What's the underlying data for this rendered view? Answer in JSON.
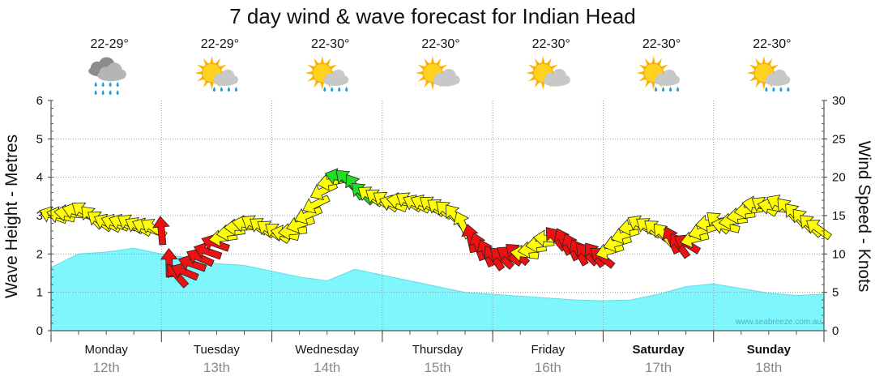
{
  "chart_data": {
    "type": "area",
    "title": "7 day wind & wave forecast for Indian Head",
    "ylabel_left": "Wave Height - Metres",
    "ylabel_right": "Wind Speed - Knots",
    "ylim_left": [
      0,
      6
    ],
    "ylim_right": [
      0,
      30
    ],
    "yticks_left": [
      "0",
      "1",
      "2",
      "3",
      "4",
      "5",
      "6"
    ],
    "yticks_right": [
      "0",
      "5",
      "10",
      "15",
      "20",
      "25",
      "30"
    ],
    "credit": "www.seabreeze.com.au",
    "grid": true,
    "days": [
      {
        "day": "Monday",
        "date": "12th",
        "temp": "22-29°",
        "weather": "rain-cloud-icon",
        "bold": false
      },
      {
        "day": "Tuesday",
        "date": "13th",
        "temp": "22-29°",
        "weather": "sun-shower-icon",
        "bold": false
      },
      {
        "day": "Wednesday",
        "date": "14th",
        "temp": "22-30°",
        "weather": "sun-shower-icon",
        "bold": false
      },
      {
        "day": "Thursday",
        "date": "15th",
        "temp": "22-30°",
        "weather": "partly-cloudy-icon",
        "bold": false
      },
      {
        "day": "Friday",
        "date": "16th",
        "temp": "22-30°",
        "weather": "partly-cloudy-icon",
        "bold": false
      },
      {
        "day": "Saturday",
        "date": "17th",
        "temp": "22-30°",
        "weather": "sun-shower-icon",
        "bold": true
      },
      {
        "day": "Sunday",
        "date": "18th",
        "temp": "22-30°",
        "weather": "sun-shower-icon",
        "bold": true
      }
    ],
    "wave_series": {
      "name": "Wave height",
      "x": [
        0,
        0.25,
        0.5,
        0.75,
        1,
        1.25,
        1.5,
        1.75,
        2,
        2.25,
        2.5,
        2.75,
        3,
        3.25,
        3.5,
        3.75,
        4,
        4.25,
        4.5,
        4.75,
        5,
        5.25,
        5.5,
        5.75,
        6,
        6.25,
        6.5,
        6.75,
        7
      ],
      "values": [
        1.65,
        2.0,
        2.05,
        2.15,
        2.0,
        1.9,
        1.75,
        1.7,
        1.55,
        1.4,
        1.3,
        1.6,
        1.45,
        1.3,
        1.15,
        1.0,
        0.95,
        0.9,
        0.85,
        0.8,
        0.78,
        0.8,
        0.95,
        1.15,
        1.22,
        1.1,
        0.98,
        0.92,
        0.95
      ]
    },
    "wind_series": {
      "name": "Wind speed",
      "x": [
        0,
        0.1,
        0.2,
        0.3,
        0.4,
        0.5,
        0.6,
        0.7,
        0.8,
        0.9,
        1.0,
        1.1,
        1.2,
        1.3,
        1.4,
        1.5,
        1.6,
        1.7,
        1.8,
        1.9,
        2.0,
        2.1,
        2.2,
        2.3,
        2.4,
        2.5,
        2.6,
        2.7,
        2.8,
        2.9,
        3.0,
        3.1,
        3.2,
        3.3,
        3.4,
        3.5,
        3.6,
        3.7,
        3.8,
        3.9,
        4.0,
        4.1,
        4.2,
        4.3,
        4.4,
        4.5,
        4.6,
        4.7,
        4.8,
        4.9,
        5.0,
        5.1,
        5.2,
        5.3,
        5.4,
        5.5,
        5.6,
        5.7,
        5.8,
        5.9,
        6.0,
        6.1,
        6.2,
        6.3,
        6.4,
        6.5,
        6.6,
        6.7,
        6.8,
        6.9,
        7.0
      ],
      "values": [
        15,
        15,
        15.5,
        15.5,
        14.5,
        14,
        14,
        14,
        13.5,
        13.5,
        13,
        7,
        7.5,
        9,
        10,
        11.5,
        12.5,
        13.5,
        14,
        13.5,
        13,
        12.5,
        13,
        14.5,
        16.5,
        19,
        20,
        19.5,
        18,
        17.5,
        17,
        16.5,
        17,
        16.5,
        16.5,
        16,
        15.5,
        14.5,
        12,
        10.5,
        9.5,
        9.5,
        10,
        10,
        11,
        12,
        12,
        11,
        10,
        10,
        9.5,
        11,
        12.5,
        14,
        13.5,
        13,
        12,
        11,
        11.5,
        13,
        14.5,
        13.5,
        14.5,
        15.5,
        16.5,
        16,
        16.5,
        15.5,
        14.5,
        13.5,
        13
      ]
    },
    "wind_colors": {
      "light": "#ffff00",
      "moderate": "#ffff00",
      "strong": "#22dd22",
      "offshore": "#ee1111"
    },
    "wind_segments": [
      {
        "from": 0,
        "to": 1.0,
        "color": "#ffff00"
      },
      {
        "from": 1.0,
        "to": 1.5,
        "color": "#ee1111"
      },
      {
        "from": 1.5,
        "to": 2.55,
        "color": "#ffff00"
      },
      {
        "from": 2.55,
        "to": 2.85,
        "color": "#22dd22"
      },
      {
        "from": 2.85,
        "to": 3.75,
        "color": "#ffff00"
      },
      {
        "from": 3.75,
        "to": 4.25,
        "color": "#ee1111"
      },
      {
        "from": 4.25,
        "to": 4.55,
        "color": "#ffff00"
      },
      {
        "from": 4.55,
        "to": 5.05,
        "color": "#ee1111"
      },
      {
        "from": 5.05,
        "to": 5.6,
        "color": "#ffff00"
      },
      {
        "from": 5.6,
        "to": 5.8,
        "color": "#ee1111"
      },
      {
        "from": 5.8,
        "to": 7.0,
        "color": "#ffff00"
      }
    ],
    "colors": {
      "wave_fill": "#7ff6fb",
      "wave_stroke": "#62dde6",
      "grid": "#999999"
    }
  }
}
